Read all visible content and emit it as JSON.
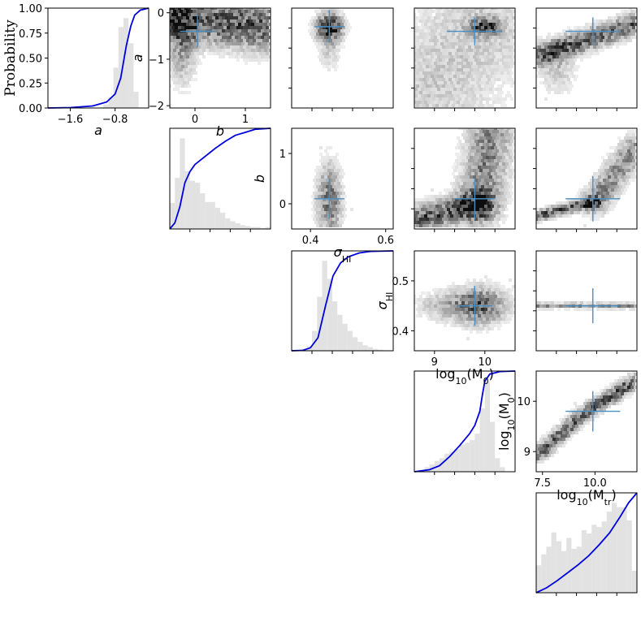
{
  "figure": {
    "type": "corner-plot",
    "parameters": [
      {
        "id": "a",
        "label": "a",
        "sub": "",
        "style": "italic"
      },
      {
        "id": "b",
        "label": "b",
        "sub": "",
        "style": "italic"
      },
      {
        "id": "sigma",
        "label": "σ",
        "sub": "HI",
        "style": "italic"
      },
      {
        "id": "m0",
        "label": "log",
        "sub": "10",
        "tail": "(M",
        "sub2": "0",
        "end": ")",
        "style": "normal"
      },
      {
        "id": "mtr",
        "label": "log",
        "sub": "10",
        "tail": "(M",
        "sub2": "tr",
        "end": ")",
        "style": "normal"
      }
    ],
    "colors": {
      "cdf_line": "#0000dd",
      "hist_fill": "#e2e2e2",
      "marker": "#4a8fc4",
      "density": "#000000"
    }
  },
  "chart_data": [
    {
      "type": "histogram+cdf",
      "panel": "a",
      "ylabel": "Probability",
      "ylim": [
        0,
        1
      ],
      "yticks": [
        "0.00",
        "0.25",
        "0.50",
        "0.75",
        "1.00"
      ],
      "xlabel": "a",
      "xlim": [
        -2.0,
        -0.2
      ],
      "xticks": [
        {
          "v": -1.6,
          "t": "−1.6"
        },
        {
          "v": -0.8,
          "t": "−0.8"
        }
      ],
      "hist_heights": [
        0,
        0,
        0,
        0,
        0,
        0,
        0,
        0,
        0,
        0,
        0,
        0.04,
        0.12,
        0.45,
        0.9,
        1.0,
        0.72,
        0.18,
        0,
        0
      ],
      "cdf": [
        [
          -2.0,
          0
        ],
        [
          -1.6,
          0.004
        ],
        [
          -1.2,
          0.02
        ],
        [
          -0.95,
          0.06
        ],
        [
          -0.8,
          0.14
        ],
        [
          -0.7,
          0.3
        ],
        [
          -0.6,
          0.62
        ],
        [
          -0.52,
          0.82
        ],
        [
          -0.45,
          0.93
        ],
        [
          -0.35,
          0.98
        ],
        [
          -0.2,
          1.0
        ]
      ]
    },
    {
      "type": "histogram+cdf",
      "panel": "b",
      "ylim": [
        0,
        1
      ],
      "xlim": [
        -0.5,
        1.5
      ],
      "hist_heights": [
        0.27,
        0.53,
        0.94,
        0.6,
        0.5,
        0.48,
        0.37,
        0.28,
        0.28,
        0.22,
        0.17,
        0.11,
        0.08,
        0.06,
        0.04,
        0.03,
        0.02,
        0.02,
        0.01,
        0.02
      ],
      "cdf": [
        [
          -0.5,
          0
        ],
        [
          -0.4,
          0.06
        ],
        [
          -0.3,
          0.22
        ],
        [
          -0.2,
          0.46
        ],
        [
          -0.1,
          0.57
        ],
        [
          0.0,
          0.64
        ],
        [
          0.2,
          0.72
        ],
        [
          0.4,
          0.8
        ],
        [
          0.6,
          0.87
        ],
        [
          0.8,
          0.93
        ],
        [
          1.0,
          0.96
        ],
        [
          1.2,
          0.99
        ],
        [
          1.5,
          1.0
        ]
      ]
    },
    {
      "type": "histogram+cdf",
      "panel": "sigma",
      "ylim": [
        0,
        1
      ],
      "xlim": [
        0.35,
        0.62
      ],
      "hist_heights": [
        0,
        0,
        0.02,
        0.05,
        0.22,
        0.6,
        1.0,
        0.8,
        0.55,
        0.4,
        0.3,
        0.22,
        0.15,
        0.1,
        0.06,
        0.04,
        0.02,
        0.01,
        0,
        0
      ],
      "cdf": [
        [
          0.35,
          0
        ],
        [
          0.38,
          0.004
        ],
        [
          0.4,
          0.03
        ],
        [
          0.42,
          0.13
        ],
        [
          0.44,
          0.45
        ],
        [
          0.46,
          0.75
        ],
        [
          0.48,
          0.88
        ],
        [
          0.5,
          0.94
        ],
        [
          0.53,
          0.98
        ],
        [
          0.56,
          0.995
        ],
        [
          0.62,
          1.0
        ]
      ]
    },
    {
      "type": "histogram+cdf",
      "panel": "m0",
      "ylim": [
        0,
        1
      ],
      "xlim": [
        8.6,
        10.6
      ],
      "hist_heights": [
        0,
        0.02,
        0.05,
        0.08,
        0.12,
        0.15,
        0.2,
        0.22,
        0.25,
        0.3,
        0.32,
        0.35,
        0.42,
        0.7,
        1.0,
        0.55,
        0.15,
        0.05,
        0,
        0
      ],
      "cdf": [
        [
          8.6,
          0
        ],
        [
          8.9,
          0.02
        ],
        [
          9.1,
          0.06
        ],
        [
          9.3,
          0.15
        ],
        [
          9.5,
          0.26
        ],
        [
          9.7,
          0.38
        ],
        [
          9.8,
          0.46
        ],
        [
          9.9,
          0.6
        ],
        [
          9.95,
          0.76
        ],
        [
          10.0,
          0.9
        ],
        [
          10.1,
          0.97
        ],
        [
          10.3,
          0.995
        ],
        [
          10.6,
          1.0
        ]
      ]
    },
    {
      "type": "histogram+cdf",
      "panel": "mtr",
      "ylim": [
        0,
        1
      ],
      "xlim": [
        7.2,
        12.0
      ],
      "hist_heights": [
        0.25,
        0.35,
        0.42,
        0.55,
        0.47,
        0.38,
        0.5,
        0.4,
        0.42,
        0.57,
        0.54,
        0.62,
        0.6,
        0.65,
        0.74,
        0.82,
        0.78,
        0.78,
        0.66,
        0.2
      ],
      "cdf": [
        [
          7.2,
          0
        ],
        [
          7.7,
          0.05
        ],
        [
          8.2,
          0.12
        ],
        [
          8.7,
          0.2
        ],
        [
          9.2,
          0.28
        ],
        [
          9.7,
          0.37
        ],
        [
          10.2,
          0.48
        ],
        [
          10.7,
          0.6
        ],
        [
          11.2,
          0.76
        ],
        [
          11.6,
          0.9
        ],
        [
          12.0,
          1.0
        ]
      ]
    },
    {
      "type": "hexbin-density",
      "x": "b",
      "y": "a",
      "xlim": [
        -0.5,
        1.5
      ],
      "ylim": [
        -2.05,
        0.1
      ],
      "xticks": [
        {
          "v": 0,
          "t": "0"
        },
        {
          "v": 1,
          "t": "1"
        }
      ],
      "yticks": [
        {
          "v": 0,
          "t": "0"
        },
        {
          "v": -1,
          "t": "−1"
        },
        {
          "v": -2,
          "t": "−2"
        }
      ],
      "marker": {
        "x": 0.05,
        "y": -0.4,
        "xerr": 0.35,
        "yerr": 0.35
      },
      "shape": [
        {
          "kind": "line",
          "x0": -0.45,
          "y0": -0.05,
          "x1": 1.35,
          "y1": -0.3,
          "w": 0.12,
          "d": 0.8
        },
        {
          "kind": "blob",
          "x": -0.25,
          "y": -0.6,
          "sx": 0.18,
          "sy": 0.6,
          "d": 0.5
        }
      ]
    },
    {
      "type": "hexbin-density",
      "x": "sigma",
      "y": "a",
      "xlim": [
        0.35,
        0.62
      ],
      "ylim": [
        -2.05,
        0.1
      ],
      "marker": {
        "x": 0.45,
        "y": -0.3,
        "xerr": 0.04,
        "yerr": 0.35
      },
      "shape": [
        {
          "kind": "blob",
          "x": 0.45,
          "y": -0.3,
          "sx": 0.025,
          "sy": 0.18,
          "d": 0.95
        },
        {
          "kind": "blob",
          "x": 0.45,
          "y": -0.6,
          "sx": 0.02,
          "sy": 0.4,
          "d": 0.3
        }
      ]
    },
    {
      "type": "hexbin-density",
      "x": "m0",
      "y": "a",
      "xlim": [
        8.6,
        10.6
      ],
      "ylim": [
        -2.05,
        0.1
      ],
      "marker": {
        "x": 9.8,
        "y": -0.4,
        "xerr": 0.55,
        "yerr": 0.3
      },
      "shape": [
        {
          "kind": "blob",
          "x": 10.0,
          "y": -0.3,
          "sx": 0.2,
          "sy": 0.12,
          "d": 0.9
        },
        {
          "kind": "line",
          "x0": 9.0,
          "y0": -1.5,
          "x1": 9.9,
          "y1": -0.35,
          "w": 0.3,
          "d": 0.25
        }
      ]
    },
    {
      "type": "hexbin-density",
      "x": "mtr",
      "y": "a",
      "xlim": [
        7.2,
        12.0
      ],
      "ylim": [
        -2.05,
        0.1
      ],
      "marker": {
        "x": 9.9,
        "y": -0.4,
        "xerr": 1.3,
        "yerr": 0.3
      },
      "shape": [
        {
          "kind": "line",
          "x0": 7.5,
          "y0": -0.9,
          "x1": 11.9,
          "y1": -0.25,
          "w": 0.12,
          "d": 0.75
        },
        {
          "kind": "blob",
          "x": 8.2,
          "y": -1.2,
          "sx": 0.6,
          "sy": 0.4,
          "d": 0.25
        }
      ]
    },
    {
      "type": "hexbin-density",
      "x": "sigma",
      "y": "b",
      "xlim": [
        0.35,
        0.62
      ],
      "ylim": [
        -0.5,
        1.5
      ],
      "xticks": [
        {
          "v": 0.4,
          "t": "0.4"
        },
        {
          "v": 0.6,
          "t": "0.6"
        }
      ],
      "yticks": [
        {
          "v": 0,
          "t": "0"
        },
        {
          "v": 1,
          "t": "1"
        }
      ],
      "marker": {
        "x": 0.45,
        "y": 0.1,
        "xerr": 0.04,
        "yerr": 0.4
      },
      "shape": [
        {
          "kind": "blob",
          "x": 0.45,
          "y": 0.05,
          "sx": 0.022,
          "sy": 0.5,
          "d": 0.65
        }
      ]
    },
    {
      "type": "hexbin-density",
      "x": "m0",
      "y": "b",
      "xlim": [
        8.6,
        10.6
      ],
      "ylim": [
        -0.5,
        1.5
      ],
      "marker": {
        "x": 9.8,
        "y": 0.1,
        "xerr": 0.4,
        "yerr": 0.4
      },
      "shape": [
        {
          "kind": "line",
          "x0": 8.7,
          "y0": -0.3,
          "x1": 9.9,
          "y1": 0.0,
          "w": 0.06,
          "d": 0.8
        },
        {
          "kind": "line",
          "x0": 9.9,
          "y0": 0.0,
          "x1": 10.1,
          "y1": 1.3,
          "w": 0.1,
          "d": 0.6
        }
      ]
    },
    {
      "type": "hexbin-density",
      "x": "mtr",
      "y": "b",
      "xlim": [
        7.2,
        12.0
      ],
      "ylim": [
        -0.5,
        1.5
      ],
      "marker": {
        "x": 9.9,
        "y": 0.1,
        "xerr": 1.3,
        "yerr": 0.45
      },
      "shape": [
        {
          "kind": "line",
          "x0": 7.2,
          "y0": -0.25,
          "x1": 10.0,
          "y1": 0.05,
          "w": 0.06,
          "d": 0.8
        },
        {
          "kind": "line",
          "x0": 10.0,
          "y0": 0.05,
          "x1": 11.9,
          "y1": 1.1,
          "w": 0.15,
          "d": 0.55
        }
      ]
    },
    {
      "type": "hexbin-density",
      "x": "m0",
      "y": "sigma",
      "xlim": [
        8.6,
        10.6
      ],
      "ylim": [
        0.36,
        0.56
      ],
      "xticks": [
        {
          "v": 9,
          "t": "9"
        },
        {
          "v": 10,
          "t": "10"
        }
      ],
      "yticks": [
        {
          "v": 0.4,
          "t": "0.4"
        },
        {
          "v": 0.5,
          "t": "0.5"
        }
      ],
      "marker": {
        "x": 9.8,
        "y": 0.45,
        "xerr": 0.35,
        "yerr": 0.04
      },
      "shape": [
        {
          "kind": "blob",
          "x": 9.9,
          "y": 0.45,
          "sx": 0.35,
          "sy": 0.025,
          "d": 0.75
        },
        {
          "kind": "blob",
          "x": 9.2,
          "y": 0.45,
          "sx": 0.4,
          "sy": 0.02,
          "d": 0.3
        }
      ]
    },
    {
      "type": "hexbin-density",
      "x": "mtr",
      "y": "sigma",
      "xlim": [
        7.2,
        12.0
      ],
      "ylim": [
        0.36,
        0.56
      ],
      "marker": {
        "x": 9.9,
        "y": 0.45,
        "xerr": 1.3,
        "yerr": 0.035
      },
      "shape": [
        {
          "kind": "line",
          "x0": 7.2,
          "y0": 0.45,
          "x1": 12.0,
          "y1": 0.45,
          "w": 0.02,
          "d": 0.55
        }
      ]
    },
    {
      "type": "hexbin-density",
      "x": "mtr",
      "y": "m0",
      "xlim": [
        7.2,
        12.0
      ],
      "ylim": [
        8.6,
        10.6
      ],
      "xticks": [
        {
          "v": 7.5,
          "t": "7.5"
        },
        {
          "v": 10.0,
          "t": "10.0"
        }
      ],
      "yticks": [
        {
          "v": 9,
          "t": "9"
        },
        {
          "v": 10,
          "t": "10"
        }
      ],
      "marker": {
        "x": 9.9,
        "y": 9.8,
        "xerr": 1.3,
        "yerr": 0.4
      },
      "shape": [
        {
          "kind": "poly",
          "pts": [
            [
              7.3,
              8.95
            ],
            [
              8.0,
              9.2
            ],
            [
              8.8,
              9.5
            ],
            [
              9.5,
              9.75
            ],
            [
              10.2,
              9.95
            ],
            [
              10.8,
              10.1
            ],
            [
              11.5,
              10.3
            ],
            [
              11.95,
              10.4
            ]
          ],
          "w": 0.1,
          "d": 0.8
        }
      ]
    }
  ]
}
